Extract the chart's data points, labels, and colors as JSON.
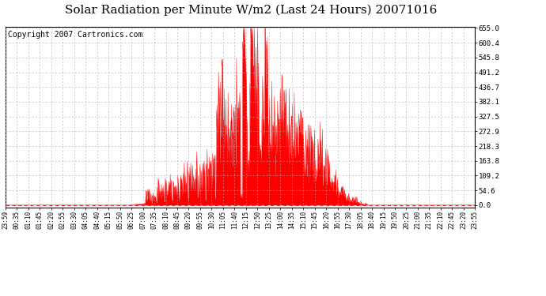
{
  "title": "Solar Radiation per Minute W/m2 (Last 24 Hours) 20071016",
  "copyright": "Copyright 2007 Cartronics.com",
  "y_ticks": [
    0.0,
    54.6,
    109.2,
    163.8,
    218.3,
    272.9,
    327.5,
    382.1,
    436.7,
    491.2,
    545.8,
    600.4,
    655.0
  ],
  "y_max": 655.0,
  "y_min": 0.0,
  "fill_color": "#FF0000",
  "line_color": "#FF0000",
  "dashed_line_color": "#FF0000",
  "grid_color": "#AAAAAA",
  "background_color": "#FFFFFF",
  "title_fontsize": 11,
  "copyright_fontsize": 7,
  "x_tick_labels": [
    "23:59",
    "00:35",
    "01:10",
    "01:45",
    "02:20",
    "02:55",
    "03:30",
    "04:05",
    "04:40",
    "05:15",
    "05:50",
    "06:25",
    "07:00",
    "07:35",
    "08:10",
    "08:45",
    "09:20",
    "09:55",
    "10:30",
    "11:05",
    "11:40",
    "12:15",
    "12:50",
    "13:25",
    "14:00",
    "14:35",
    "15:10",
    "15:45",
    "16:20",
    "16:55",
    "17:30",
    "18:05",
    "18:40",
    "19:15",
    "19:50",
    "20:25",
    "21:00",
    "21:35",
    "22:10",
    "22:45",
    "23:20",
    "23:55"
  ]
}
